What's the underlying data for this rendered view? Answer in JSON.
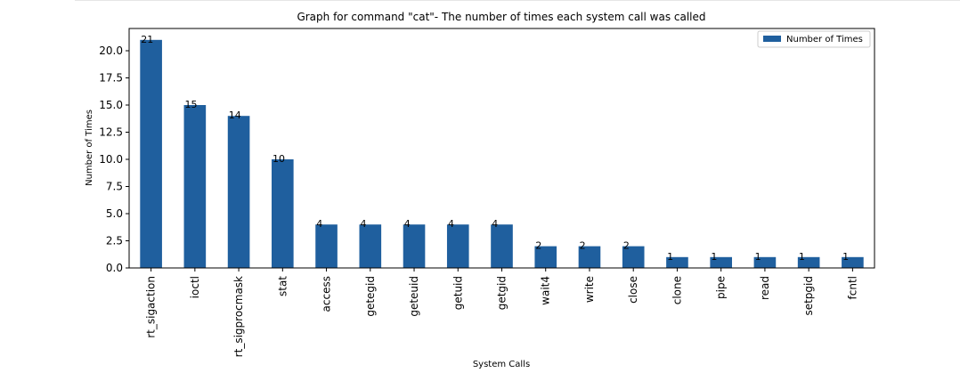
{
  "chart_data": {
    "type": "bar",
    "title": "Graph for command \"cat\"- The number of times each system call was called",
    "xlabel": "System Calls",
    "ylabel": "Number of Times",
    "categories": [
      "rt_sigaction",
      "ioctl",
      "rt_sigprocmask",
      "stat",
      "access",
      "getegid",
      "geteuid",
      "getuid",
      "getgid",
      "wait4",
      "write",
      "close",
      "clone",
      "pipe",
      "read",
      "setpgid",
      "fcntl"
    ],
    "series": [
      {
        "name": "Number of Times",
        "values": [
          21,
          15,
          14,
          10,
          4,
          4,
          4,
          4,
          4,
          2,
          2,
          2,
          1,
          1,
          1,
          1,
          1
        ]
      }
    ],
    "data_labels": [
      "21",
      "15",
      "14",
      "10",
      "4",
      "4",
      "4",
      "4",
      "4",
      "2",
      "2",
      "2",
      "1",
      "1",
      "1",
      "1",
      "1"
    ],
    "ylim": [
      0,
      22.05
    ],
    "yticks": [
      0,
      2.5,
      5,
      7.5,
      10,
      12.5,
      15,
      17.5,
      20
    ],
    "ytick_labels": [
      "0.0",
      "2.5",
      "5.0",
      "7.5",
      "10.0",
      "12.5",
      "15.0",
      "17.5",
      "20.0"
    ],
    "grid": false,
    "legend_position": "top-right",
    "bar_color": "#1f5f9e"
  }
}
